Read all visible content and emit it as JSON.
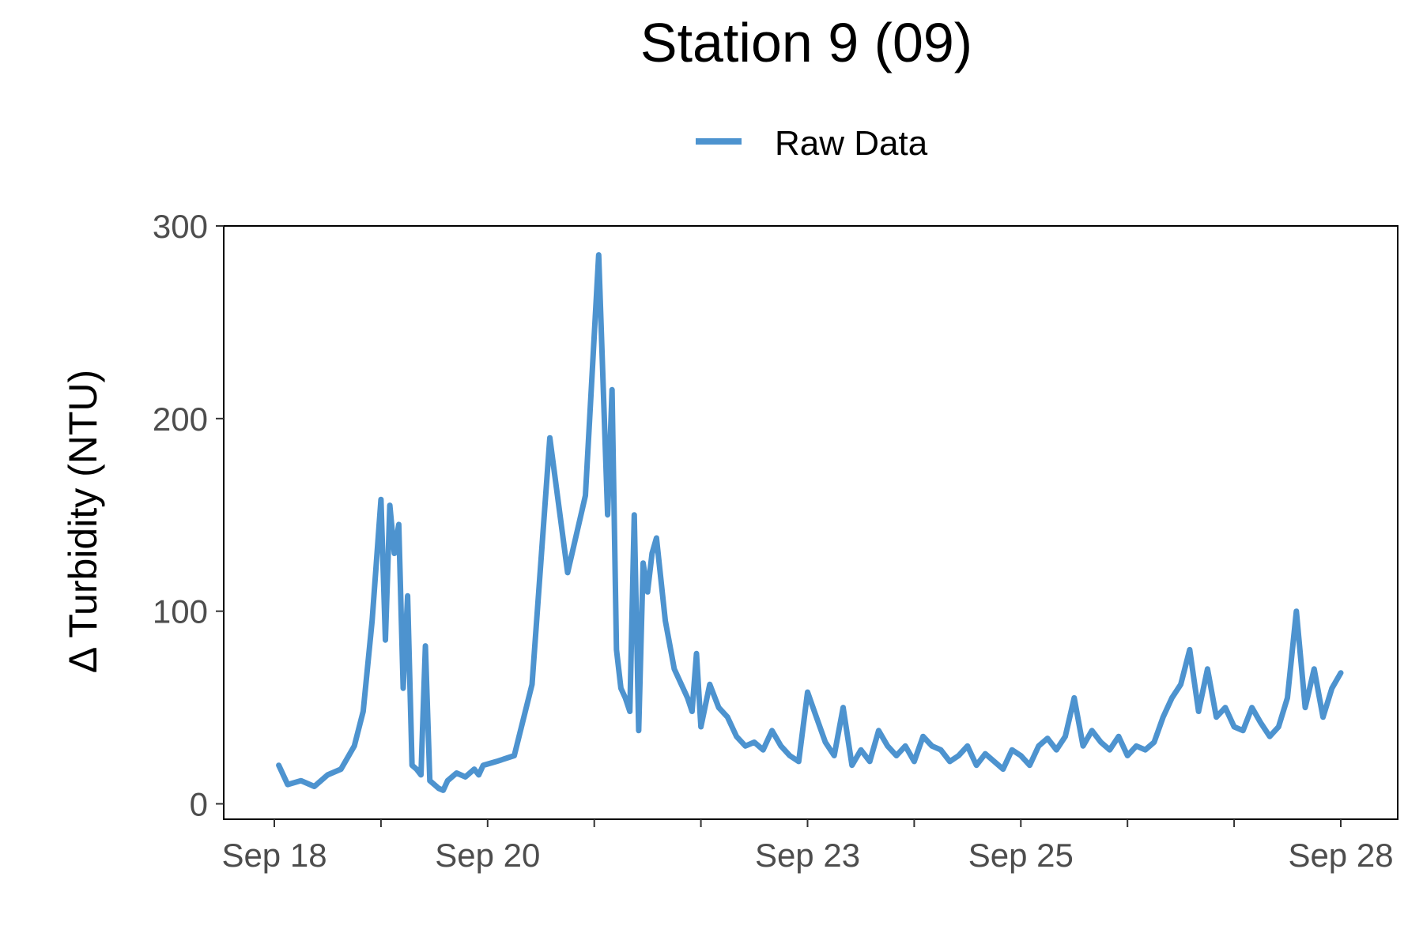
{
  "chart_data": {
    "type": "line",
    "title": "Station 9 (09)",
    "xlabel": "",
    "ylabel": "Δ Turbidity (NTU)",
    "x_range": [
      "2023-09-18",
      "2023-09-28"
    ],
    "ylim": [
      -8,
      300
    ],
    "y_ticks": [
      0,
      100,
      200,
      300
    ],
    "y_tick_labels": [
      "0",
      "100",
      "200",
      "300"
    ],
    "x_ticks": [
      "2023-09-18",
      "2023-09-19",
      "2023-09-20",
      "2023-09-21",
      "2023-09-22",
      "2023-09-23",
      "2023-09-24",
      "2023-09-25",
      "2023-09-26",
      "2023-09-27",
      "2023-09-28"
    ],
    "x_tick_labels": [
      "Sep 18",
      "",
      "Sep 20",
      "",
      "",
      "Sep 23",
      "",
      "Sep 25",
      "",
      "",
      "Sep 28"
    ],
    "grid": false,
    "legend": {
      "position": "top",
      "entries": [
        "Raw Data"
      ]
    },
    "colors": {
      "series": "#4d93cf"
    },
    "series": [
      {
        "name": "Raw Data",
        "x": [
          "2023-09-18 01:00",
          "2023-09-18 03:00",
          "2023-09-18 06:00",
          "2023-09-18 09:00",
          "2023-09-18 12:00",
          "2023-09-18 15:00",
          "2023-09-18 18:00",
          "2023-09-18 20:00",
          "2023-09-18 22:00",
          "2023-09-19 00:00",
          "2023-09-19 01:00",
          "2023-09-19 02:00",
          "2023-09-19 03:00",
          "2023-09-19 04:00",
          "2023-09-19 05:00",
          "2023-09-19 06:00",
          "2023-09-19 07:00",
          "2023-09-19 08:00",
          "2023-09-19 09:00",
          "2023-09-19 10:00",
          "2023-09-19 11:00",
          "2023-09-19 12:00",
          "2023-09-19 13:00",
          "2023-09-19 14:00",
          "2023-09-19 15:00",
          "2023-09-19 17:00",
          "2023-09-19 19:00",
          "2023-09-19 21:00",
          "2023-09-19 22:00",
          "2023-09-19 23:00",
          "2023-09-20 02:00",
          "2023-09-20 06:00",
          "2023-09-20 10:00",
          "2023-09-20 14:00",
          "2023-09-20 18:00",
          "2023-09-20 22:00",
          "2023-09-21 01:00",
          "2023-09-21 03:00",
          "2023-09-21 04:00",
          "2023-09-21 05:00",
          "2023-09-21 06:00",
          "2023-09-21 07:00",
          "2023-09-21 08:00",
          "2023-09-21 09:00",
          "2023-09-21 10:00",
          "2023-09-21 11:00",
          "2023-09-21 12:00",
          "2023-09-21 13:00",
          "2023-09-21 14:00",
          "2023-09-21 16:00",
          "2023-09-21 18:00",
          "2023-09-21 20:00",
          "2023-09-21 21:00",
          "2023-09-21 22:00",
          "2023-09-21 23:00",
          "2023-09-22 00:00",
          "2023-09-22 02:00",
          "2023-09-22 04:00",
          "2023-09-22 06:00",
          "2023-09-22 08:00",
          "2023-09-22 10:00",
          "2023-09-22 12:00",
          "2023-09-22 14:00",
          "2023-09-22 16:00",
          "2023-09-22 18:00",
          "2023-09-22 20:00",
          "2023-09-22 22:00",
          "2023-09-23 00:00",
          "2023-09-23 02:00",
          "2023-09-23 04:00",
          "2023-09-23 06:00",
          "2023-09-23 08:00",
          "2023-09-23 10:00",
          "2023-09-23 12:00",
          "2023-09-23 14:00",
          "2023-09-23 16:00",
          "2023-09-23 18:00",
          "2023-09-23 20:00",
          "2023-09-23 22:00",
          "2023-09-24 00:00",
          "2023-09-24 02:00",
          "2023-09-24 04:00",
          "2023-09-24 06:00",
          "2023-09-24 08:00",
          "2023-09-24 10:00",
          "2023-09-24 12:00",
          "2023-09-24 14:00",
          "2023-09-24 16:00",
          "2023-09-24 18:00",
          "2023-09-24 20:00",
          "2023-09-24 22:00",
          "2023-09-25 00:00",
          "2023-09-25 02:00",
          "2023-09-25 04:00",
          "2023-09-25 06:00",
          "2023-09-25 08:00",
          "2023-09-25 10:00",
          "2023-09-25 12:00",
          "2023-09-25 14:00",
          "2023-09-25 16:00",
          "2023-09-25 18:00",
          "2023-09-25 20:00",
          "2023-09-25 22:00",
          "2023-09-26 00:00",
          "2023-09-26 02:00",
          "2023-09-26 04:00",
          "2023-09-26 06:00",
          "2023-09-26 08:00",
          "2023-09-26 10:00",
          "2023-09-26 12:00",
          "2023-09-26 14:00",
          "2023-09-26 16:00",
          "2023-09-26 18:00",
          "2023-09-26 20:00",
          "2023-09-26 22:00",
          "2023-09-27 00:00",
          "2023-09-27 02:00",
          "2023-09-27 04:00",
          "2023-09-27 06:00",
          "2023-09-27 08:00",
          "2023-09-27 10:00",
          "2023-09-27 12:00",
          "2023-09-27 14:00",
          "2023-09-27 16:00",
          "2023-09-27 18:00",
          "2023-09-27 20:00",
          "2023-09-27 22:00",
          "2023-09-28 00:00"
        ],
        "y": [
          20,
          10,
          12,
          9,
          15,
          18,
          30,
          48,
          95,
          158,
          85,
          155,
          130,
          145,
          60,
          108,
          20,
          18,
          15,
          82,
          12,
          10,
          8,
          7,
          12,
          16,
          14,
          18,
          15,
          20,
          22,
          25,
          62,
          190,
          120,
          160,
          285,
          150,
          215,
          80,
          60,
          55,
          48,
          150,
          38,
          125,
          110,
          130,
          138,
          95,
          70,
          60,
          55,
          48,
          78,
          40,
          62,
          50,
          45,
          35,
          30,
          32,
          28,
          38,
          30,
          25,
          22,
          58,
          45,
          32,
          25,
          50,
          20,
          28,
          22,
          38,
          30,
          25,
          30,
          22,
          35,
          30,
          28,
          22,
          25,
          30,
          20,
          26,
          22,
          18,
          28,
          25,
          20,
          30,
          34,
          28,
          35,
          55,
          30,
          38,
          32,
          28,
          35,
          25,
          30,
          28,
          32,
          45,
          55,
          62,
          80,
          48,
          70,
          45,
          50,
          40,
          38,
          50,
          42,
          35,
          40,
          55,
          100,
          50,
          70,
          45,
          60,
          68
        ]
      }
    ]
  }
}
